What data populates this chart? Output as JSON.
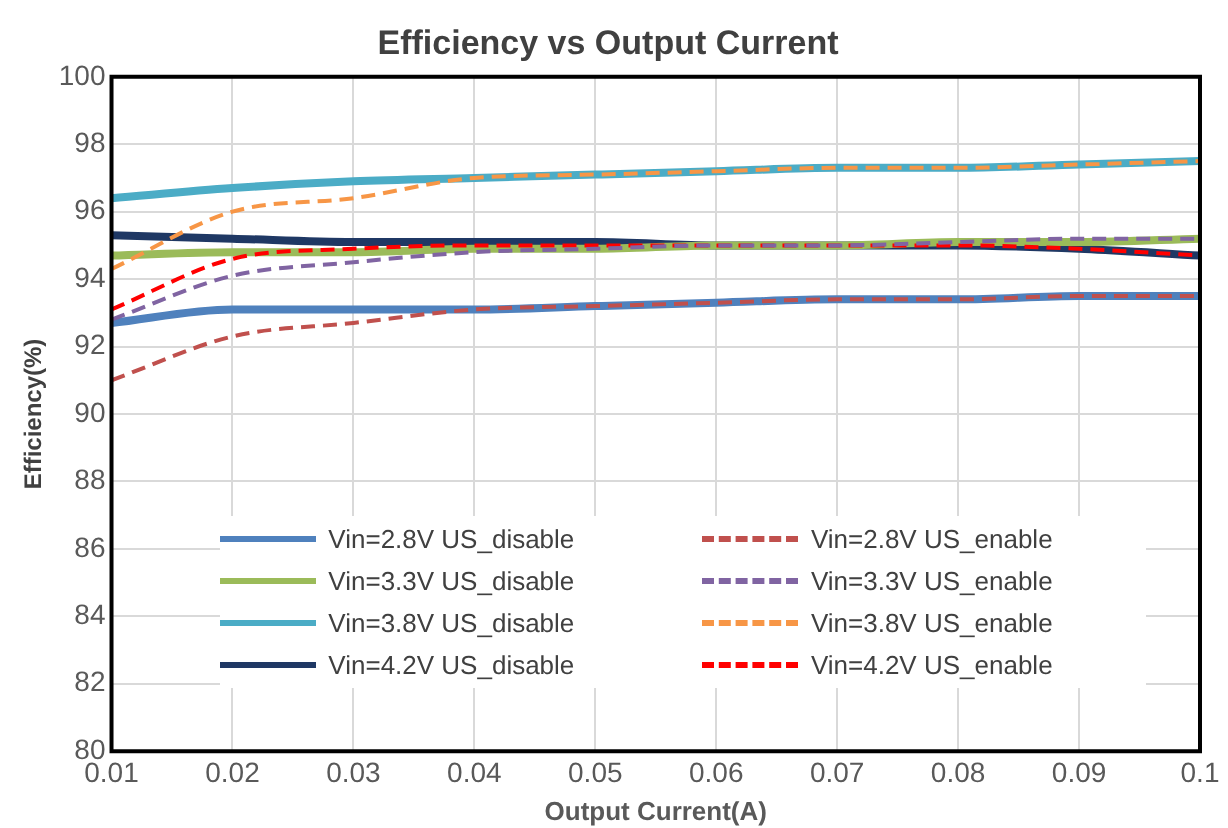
{
  "chart_data": {
    "type": "line",
    "title": "Efficiency vs Output Current",
    "xlabel": "Output Current(A)",
    "ylabel": "Efficiency(%)",
    "x": [
      0.01,
      0.02,
      0.03,
      0.04,
      0.05,
      0.06,
      0.07,
      0.08,
      0.09,
      0.1
    ],
    "xlim": [
      0.01,
      0.1
    ],
    "xticks": [
      0.01,
      0.02,
      0.03,
      0.04,
      0.05,
      0.06,
      0.07,
      0.08,
      0.09,
      0.1
    ],
    "ylim": [
      80,
      100
    ],
    "yticks": [
      80,
      82,
      84,
      86,
      88,
      90,
      92,
      94,
      96,
      98,
      100
    ],
    "grid": true,
    "legend": "bottom",
    "marker": "none",
    "series": [
      {
        "name": "Vin=2.8V US_disable",
        "color": "#4f81bd",
        "line_style": "solid",
        "values": [
          92.7,
          93.1,
          93.1,
          93.1,
          93.2,
          93.3,
          93.4,
          93.4,
          93.5,
          93.5
        ]
      },
      {
        "name": "Vin=2.8V US_enable",
        "color": "#c0504d",
        "line_style": "dashed",
        "values": [
          91.0,
          92.3,
          92.7,
          93.1,
          93.2,
          93.3,
          93.4,
          93.4,
          93.5,
          93.5
        ]
      },
      {
        "name": "Vin=3.3V US_disable",
        "color": "#9bbb59",
        "line_style": "solid",
        "values": [
          94.7,
          94.8,
          94.8,
          94.9,
          94.9,
          95.0,
          95.0,
          95.1,
          95.1,
          95.2
        ]
      },
      {
        "name": "Vin=3.3V US_enable",
        "color": "#8064a2",
        "line_style": "dashed",
        "values": [
          92.8,
          94.1,
          94.5,
          94.8,
          94.9,
          95.0,
          95.0,
          95.1,
          95.2,
          95.2
        ]
      },
      {
        "name": "Vin=3.8V US_disable",
        "color": "#4bacc6",
        "line_style": "solid",
        "values": [
          96.4,
          96.7,
          96.9,
          97.0,
          97.1,
          97.2,
          97.3,
          97.3,
          97.4,
          97.5
        ]
      },
      {
        "name": "Vin=3.8V US_enable",
        "color": "#f79646",
        "line_style": "dashed",
        "values": [
          94.3,
          96.0,
          96.4,
          97.0,
          97.1,
          97.2,
          97.3,
          97.3,
          97.4,
          97.5
        ]
      },
      {
        "name": "Vin=4.2V US_disable",
        "color": "#1f3864",
        "line_style": "solid",
        "values": [
          95.3,
          95.2,
          95.1,
          95.1,
          95.1,
          95.0,
          95.0,
          95.0,
          94.9,
          94.7
        ]
      },
      {
        "name": "Vin=4.2V US_enable",
        "color": "#ff0000",
        "line_style": "dashed",
        "values": [
          93.1,
          94.6,
          94.9,
          95.0,
          95.0,
          95.0,
          95.0,
          95.0,
          94.9,
          94.7
        ]
      }
    ]
  }
}
